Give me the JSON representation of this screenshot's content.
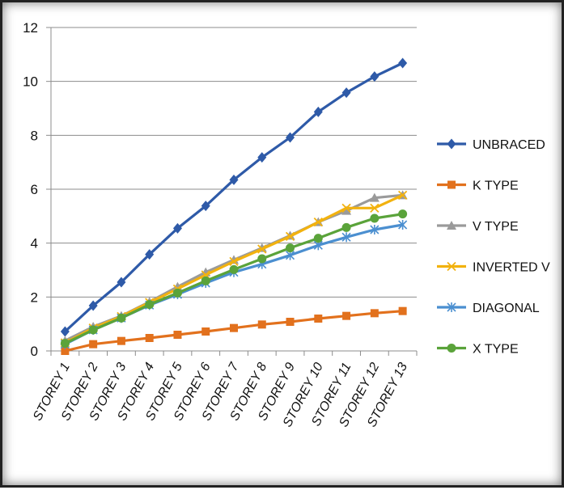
{
  "chart_data": {
    "type": "line",
    "title": "",
    "xlabel": "",
    "ylabel": "",
    "ylim": [
      0,
      12
    ],
    "yticks": [
      0,
      2,
      4,
      6,
      8,
      10,
      12
    ],
    "grid": true,
    "legend_position": "right",
    "categories": [
      "STOREY 1",
      "STOREY 2",
      "STOREY 3",
      "STOREY 4",
      "STOREY 5",
      "STOREY 6",
      "STOREY 7",
      "STOREY 8",
      "STOREY 9",
      "STOREY 10",
      "STOREY 11",
      "STOREY 12",
      "STOREY 13"
    ],
    "series": [
      {
        "name": "UNBRACED",
        "color": "#2e5aa8",
        "marker": "diamond",
        "values": [
          0.72,
          1.68,
          2.55,
          3.58,
          4.55,
          5.38,
          6.35,
          7.18,
          7.92,
          8.87,
          9.58,
          10.18,
          10.68
        ]
      },
      {
        "name": "K TYPE",
        "color": "#e2711d",
        "marker": "square",
        "values": [
          0.0,
          0.25,
          0.37,
          0.48,
          0.6,
          0.72,
          0.85,
          0.98,
          1.08,
          1.2,
          1.3,
          1.4,
          1.48
        ]
      },
      {
        "name": "V TYPE",
        "color": "#9a9a9a",
        "marker": "triangle",
        "values": [
          0.38,
          0.9,
          1.3,
          1.82,
          2.38,
          2.92,
          3.38,
          3.82,
          4.28,
          4.78,
          5.2,
          5.68,
          5.78
        ]
      },
      {
        "name": "INVERTED V",
        "color": "#f2b20f",
        "marker": "x",
        "values": [
          0.3,
          0.85,
          1.28,
          1.8,
          2.3,
          2.82,
          3.32,
          3.78,
          4.25,
          4.78,
          5.3,
          5.3,
          5.78
        ]
      },
      {
        "name": "DIAGONAL",
        "color": "#4b8fd0",
        "marker": "asterisk",
        "values": [
          0.25,
          0.78,
          1.22,
          1.7,
          2.1,
          2.52,
          2.92,
          3.22,
          3.55,
          3.92,
          4.22,
          4.5,
          4.68
        ]
      },
      {
        "name": "X TYPE",
        "color": "#5aa33a",
        "marker": "circle",
        "values": [
          0.28,
          0.78,
          1.22,
          1.72,
          2.15,
          2.6,
          3.02,
          3.42,
          3.82,
          4.18,
          4.58,
          4.92,
          5.08
        ]
      }
    ]
  }
}
